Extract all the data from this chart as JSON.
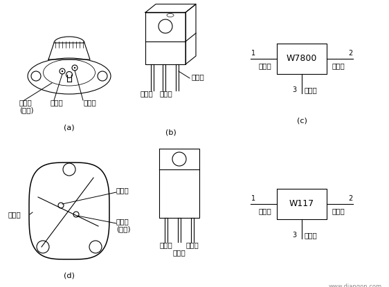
{
  "bg_color": "#ffffff",
  "text_color": "#000000",
  "line_color": "#000000",
  "lw": 0.8,
  "fig_w": 5.62,
  "fig_h": 4.15,
  "dpi": 100,
  "watermark": "www.diangon.com",
  "caption_a": "(a)",
  "caption_b": "(b)",
  "caption_c": "(c)",
  "caption_d": "(d)",
  "w7800_label": "W7800",
  "w117_label": "W117",
  "fs_label": 7.5,
  "fs_caption": 8,
  "fs_number": 7,
  "fs_chip": 9,
  "fs_watermark": 6
}
